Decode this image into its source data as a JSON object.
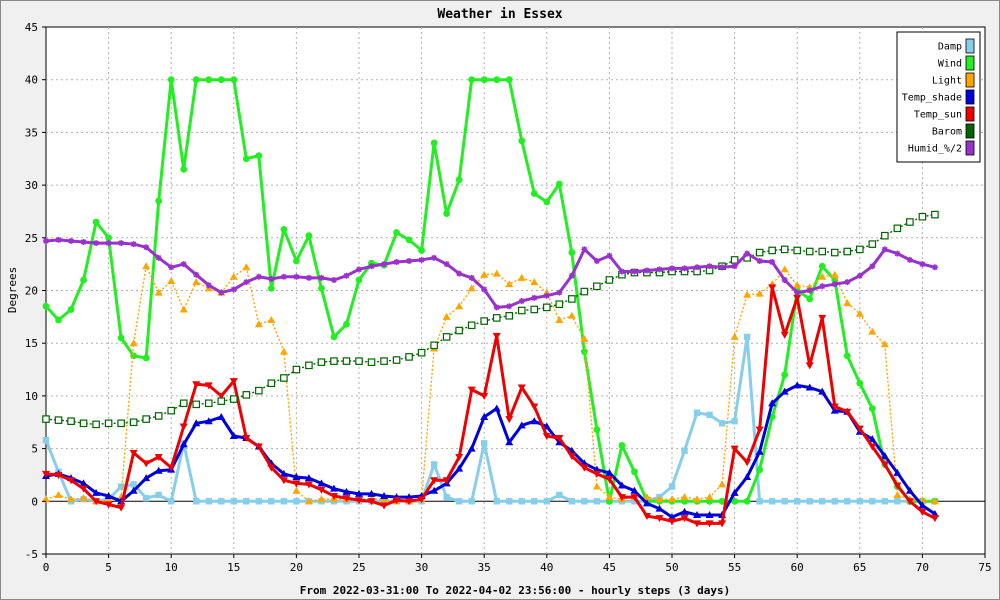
{
  "chart_data": {
    "type": "line",
    "title": "Weather in Essex",
    "xlabel": "From 2022-03-31:00 To 2022-04-02 23:56:00 - hourly steps (3 days)",
    "ylabel": "Degrees",
    "xlim": [
      0,
      75
    ],
    "ylim": [
      -5,
      45
    ],
    "xticks": [
      0,
      5,
      10,
      15,
      20,
      25,
      30,
      35,
      40,
      45,
      50,
      55,
      60,
      65,
      70,
      75
    ],
    "yticks": [
      -5,
      0,
      5,
      10,
      15,
      20,
      25,
      30,
      35,
      40,
      45
    ],
    "grid": true,
    "legend_position": "top-right",
    "series": [
      {
        "name": "Damp",
        "color": "#87CEEB",
        "marker": "square",
        "style": "solid",
        "values": [
          5.8,
          2.8,
          0,
          0.2,
          0,
          0.2,
          1.4,
          1.6,
          0.3,
          0.6,
          0,
          5.5,
          0,
          0,
          0,
          0,
          0,
          0,
          0,
          0,
          0,
          0,
          0,
          0,
          0,
          0,
          0,
          0,
          0,
          0,
          0,
          3.5,
          0.4,
          0,
          0,
          5.5,
          0,
          0,
          0,
          0,
          0,
          0.6,
          0,
          0,
          0,
          0,
          0,
          0,
          0,
          0.4,
          1.4,
          4.8,
          8.4,
          8.2,
          7.4,
          7.6,
          15.6,
          0,
          0,
          0,
          0,
          0,
          0,
          0,
          0,
          0,
          0,
          0,
          0,
          0,
          0,
          0
        ]
      },
      {
        "name": "Wind",
        "color": "#22EE22",
        "marker": "circle",
        "style": "solid",
        "values": [
          18.5,
          17.2,
          18.2,
          21.0,
          26.5,
          25.0,
          15.5,
          13.8,
          13.6,
          28.5,
          40.0,
          31.5,
          40.0,
          40.0,
          40.0,
          40.0,
          32.5,
          32.8,
          20.2,
          25.8,
          22.8,
          25.2,
          20.2,
          15.6,
          16.8,
          21.0,
          22.6,
          22.4,
          25.5,
          24.8,
          23.8,
          34.0,
          27.3,
          30.5,
          40.0,
          40.0,
          40.0,
          40.0,
          34.2,
          29.2,
          28.4,
          30.1,
          23.6,
          14.2,
          6.8,
          0,
          5.3,
          2.8,
          0,
          0,
          0,
          0,
          0,
          0,
          0,
          0,
          0,
          3.0,
          8.0,
          12.0,
          20.0,
          19.2,
          22.3,
          21.0,
          13.8,
          11.2,
          8.8,
          3.5,
          1.4,
          0,
          0,
          0
        ]
      },
      {
        "name": "Light",
        "color": "#FFA500",
        "marker": "triangle-up",
        "style": "dotted",
        "values": [
          0.2,
          0.6,
          0.2,
          0.3,
          0,
          0.1,
          0.4,
          15.0,
          22.3,
          19.8,
          20.9,
          18.2,
          20.8,
          20.2,
          19.8,
          21.3,
          22.2,
          16.8,
          17.2,
          14.2,
          1.0,
          0,
          0.2,
          0.2,
          0.2,
          0.2,
          0.2,
          0.2,
          0,
          0,
          0.2,
          14.5,
          17.5,
          18.5,
          20.2,
          21.5,
          21.6,
          20.6,
          21.2,
          20.8,
          19.8,
          17.2,
          17.6,
          15.4,
          1.4,
          0.4,
          0.2,
          0.4,
          0.4,
          0.2,
          0.2,
          0.4,
          0.2,
          0.4,
          1.6,
          15.6,
          19.6,
          19.7,
          20.6,
          22.0,
          20.5,
          20.3,
          21.3,
          21.5,
          18.8,
          17.8,
          16.1,
          14.9,
          0.6,
          0.2,
          0.1,
          0
        ]
      },
      {
        "name": "Temp_shade",
        "color": "#0000DD",
        "marker": "triangle-up",
        "style": "solid",
        "values": [
          2.4,
          2.6,
          2.2,
          1.7,
          0.8,
          0.5,
          0,
          1.0,
          2.2,
          2.9,
          3.0,
          5.4,
          7.4,
          7.6,
          8.0,
          6.2,
          6.0,
          5.2,
          3.6,
          2.6,
          2.3,
          2.2,
          1.7,
          1.2,
          0.9,
          0.7,
          0.7,
          0.5,
          0.4,
          0.4,
          0.5,
          1.0,
          1.7,
          3.1,
          5.0,
          8.0,
          8.8,
          5.6,
          7.2,
          7.6,
          7.1,
          5.6,
          4.8,
          3.6,
          3.0,
          2.7,
          1.5,
          1.0,
          -0.2,
          -0.7,
          -1.5,
          -1.0,
          -1.3,
          -1.3,
          -1.3,
          0.8,
          2.3,
          4.7,
          9.3,
          10.4,
          11.0,
          10.8,
          10.4,
          8.6,
          8.5,
          6.6,
          5.9,
          4.3,
          2.7,
          1.0,
          -0.4,
          -1.2
        ]
      },
      {
        "name": "Temp_sun",
        "color": "#EE0000",
        "marker": "triangle-down",
        "style": "solid",
        "values": [
          2.6,
          2.5,
          2.0,
          1.2,
          0,
          -0.3,
          -0.6,
          4.6,
          3.6,
          4.2,
          3.2,
          7.1,
          11.1,
          11.0,
          10.0,
          11.4,
          6.0,
          5.2,
          3.2,
          2.0,
          1.7,
          1.6,
          1.1,
          0.5,
          0.3,
          0.1,
          0,
          -0.4,
          0.1,
          0,
          0.2,
          2.0,
          2.0,
          4.2,
          10.6,
          10.0,
          15.7,
          7.8,
          10.8,
          9.0,
          6.2,
          6.0,
          4.3,
          3.2,
          2.6,
          2.1,
          0.4,
          0.4,
          -1.4,
          -1.6,
          -1.9,
          -1.6,
          -2.1,
          -2.1,
          -2.1,
          5.0,
          3.7,
          6.8,
          20.3,
          15.8,
          19.3,
          12.9,
          17.4,
          9.0,
          8.5,
          6.9,
          5.2,
          3.5,
          1.5,
          0,
          -1.0,
          -1.6
        ]
      },
      {
        "name": "Barom",
        "color": "#006400",
        "marker": "square-open",
        "style": "dotted",
        "values": [
          7.8,
          7.7,
          7.6,
          7.4,
          7.3,
          7.4,
          7.4,
          7.5,
          7.8,
          8.1,
          8.6,
          9.3,
          9.2,
          9.3,
          9.5,
          9.7,
          10.1,
          10.5,
          11.2,
          11.7,
          12.5,
          12.9,
          13.2,
          13.3,
          13.3,
          13.3,
          13.2,
          13.3,
          13.4,
          13.7,
          14.1,
          14.8,
          15.6,
          16.2,
          16.7,
          17.1,
          17.4,
          17.6,
          18.1,
          18.2,
          18.4,
          18.7,
          19.2,
          19.9,
          20.4,
          21.0,
          21.5,
          21.7,
          21.7,
          21.7,
          21.8,
          21.8,
          21.8,
          21.9,
          22.3,
          22.9,
          23.1,
          23.6,
          23.8,
          23.9,
          23.8,
          23.7,
          23.7,
          23.6,
          23.7,
          23.9,
          24.4,
          25.2,
          25.9,
          26.5,
          27.0,
          27.2
        ]
      },
      {
        "name": "Humid_%/2",
        "color": "#9932CC",
        "marker": "star",
        "style": "solid",
        "values": [
          24.7,
          24.8,
          24.7,
          24.6,
          24.5,
          24.5,
          24.5,
          24.4,
          24.1,
          23.1,
          22.2,
          22.5,
          21.5,
          20.5,
          19.8,
          20.1,
          20.8,
          21.3,
          21.1,
          21.3,
          21.3,
          21.2,
          21.2,
          21.0,
          21.4,
          22.0,
          22.3,
          22.5,
          22.7,
          22.8,
          22.9,
          23.1,
          22.5,
          21.6,
          21.2,
          20.1,
          18.4,
          18.5,
          19.0,
          19.3,
          19.5,
          19.8,
          21.4,
          23.9,
          22.8,
          23.3,
          21.8,
          21.8,
          21.9,
          22.0,
          22.1,
          22.1,
          22.2,
          22.3,
          22.2,
          22.3,
          23.5,
          22.8,
          22.7,
          21.0,
          19.8,
          20.0,
          20.4,
          20.6,
          20.8,
          21.4,
          22.3,
          23.9,
          23.5,
          22.9,
          22.5,
          22.2
        ]
      }
    ]
  }
}
